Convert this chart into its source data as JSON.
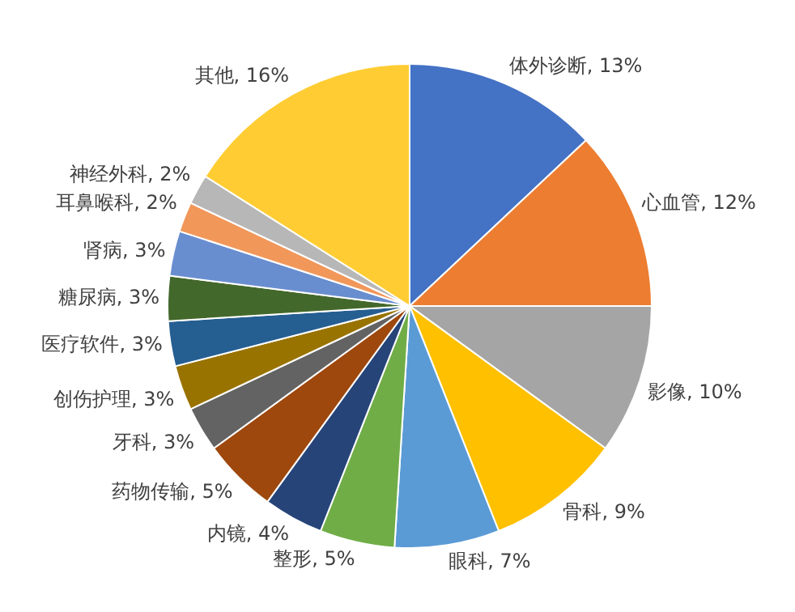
{
  "chart_data": {
    "type": "pie",
    "categories": [
      "体外诊断",
      "心血管",
      "影像",
      "骨科",
      "眼科",
      "整形",
      "内镜",
      "药物传输",
      "牙科",
      "创伤护理",
      "医疗软件",
      "糖尿病",
      "肾病",
      "耳鼻喉科",
      "神经外科",
      "其他"
    ],
    "values": [
      13,
      12,
      10,
      9,
      7,
      5,
      4,
      5,
      3,
      3,
      3,
      3,
      3,
      2,
      2,
      16
    ],
    "value_labels": [
      "13%",
      "12%",
      "10%",
      "9%",
      "7%",
      "5%",
      "4%",
      "5%",
      "3%",
      "3%",
      "3%",
      "3%",
      "3%",
      "2%",
      "2%",
      "16%"
    ],
    "colors": [
      "#4472c4",
      "#ed7d31",
      "#a5a5a5",
      "#ffc000",
      "#5b9bd5",
      "#70ad47",
      "#264478",
      "#9e480e",
      "#636363",
      "#997300",
      "#255e91",
      "#43682b",
      "#698ed0",
      "#f1975a",
      "#b7b7b7",
      "#ffcd33"
    ],
    "legend": false
  }
}
